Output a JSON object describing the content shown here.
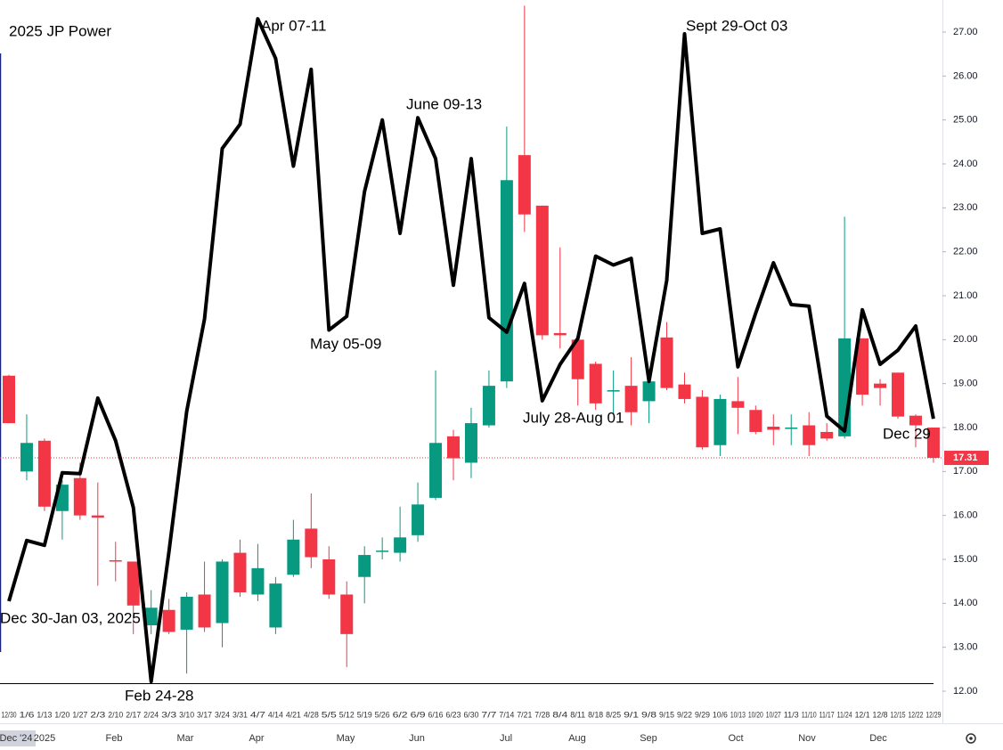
{
  "chart_data": {
    "type": "candlestick",
    "title": "2025 JP Power",
    "categories": [
      "12/30",
      "1/6",
      "1/13",
      "1/20",
      "1/27",
      "2/3",
      "2/10",
      "2/17",
      "2/24",
      "3/3",
      "3/10",
      "3/17",
      "3/24",
      "3/31",
      "4/7",
      "4/14",
      "4/21",
      "4/28",
      "5/5",
      "5/12",
      "5/19",
      "5/26",
      "6/2",
      "6/9",
      "6/16",
      "6/23",
      "6/30",
      "7/7",
      "7/14",
      "7/21",
      "7/28",
      "8/4",
      "8/11",
      "8/18",
      "8/25",
      "9/1",
      "9/8",
      "9/15",
      "9/22",
      "9/29",
      "10/6",
      "10/13",
      "10/20",
      "10/27",
      "11/3",
      "11/10",
      "11/17",
      "11/24",
      "12/1",
      "12/8",
      "12/15",
      "12/22",
      "12/29"
    ],
    "months": [
      "Dec '24",
      "2025",
      "Feb",
      "Mar",
      "Apr",
      "May",
      "Jun",
      "Jul",
      "Aug",
      "Sep",
      "Oct",
      "Nov",
      "Dec"
    ],
    "open": [
      19.18,
      17.0,
      17.7,
      16.1,
      16.85,
      16.0,
      14.98,
      14.95,
      13.5,
      13.85,
      13.4,
      14.2,
      13.55,
      15.15,
      14.2,
      13.45,
      14.65,
      15.7,
      15.0,
      14.2,
      14.6,
      15.2,
      15.15,
      15.55,
      16.4,
      17.8,
      17.2,
      18.05,
      19.05,
      24.2,
      23.05,
      20.15,
      20.0,
      19.45,
      18.85,
      18.95,
      18.6,
      20.05,
      18.98,
      18.7,
      17.6,
      18.6,
      18.4,
      18.02,
      18.0,
      18.05,
      17.9,
      17.8,
      20.03,
      19.0,
      19.25,
      18.27,
      18.0
    ],
    "high": [
      19.2,
      18.3,
      17.75,
      16.8,
      17.2,
      16.75,
      15.4,
      14.95,
      14.3,
      14.1,
      14.25,
      14.95,
      15.0,
      15.45,
      15.35,
      14.6,
      15.9,
      16.5,
      15.3,
      14.5,
      15.3,
      15.5,
      16.2,
      16.75,
      19.3,
      17.95,
      18.45,
      19.3,
      24.85,
      27.6,
      23.05,
      22.1,
      20.1,
      19.5,
      19.3,
      19.6,
      19.1,
      20.4,
      19.25,
      18.85,
      18.75,
      19.15,
      18.5,
      18.3,
      18.3,
      18.35,
      18.1,
      22.8,
      20.0,
      19.1,
      19.25,
      18.3,
      18.0
    ],
    "low": [
      18.1,
      16.8,
      16.1,
      15.45,
      15.9,
      14.4,
      14.5,
      13.3,
      13.3,
      13.3,
      12.4,
      13.35,
      13.0,
      14.15,
      14.05,
      13.3,
      14.6,
      14.8,
      14.1,
      12.55,
      14.0,
      15.0,
      14.95,
      15.4,
      16.35,
      16.8,
      16.85,
      18.0,
      18.9,
      22.45,
      20.0,
      19.8,
      18.5,
      18.4,
      18.3,
      18.05,
      18.1,
      18.85,
      18.55,
      17.5,
      17.35,
      17.85,
      17.85,
      17.6,
      17.6,
      17.35,
      17.7,
      17.75,
      18.5,
      18.5,
      18.2,
      17.55,
      17.2
    ],
    "close": [
      18.1,
      17.65,
      16.2,
      16.7,
      16.0,
      15.95,
      14.95,
      13.95,
      13.9,
      13.35,
      14.15,
      13.45,
      14.95,
      14.25,
      14.8,
      14.45,
      15.45,
      15.05,
      14.2,
      13.3,
      15.1,
      15.2,
      15.5,
      16.25,
      17.65,
      17.3,
      18.1,
      18.95,
      23.63,
      22.85,
      20.1,
      20.1,
      19.1,
      18.55,
      18.85,
      18.35,
      19.05,
      18.9,
      18.65,
      17.55,
      18.65,
      18.45,
      17.9,
      17.95,
      18.0,
      17.6,
      17.75,
      20.03,
      18.75,
      18.9,
      18.25,
      18.05,
      17.31
    ],
    "color_up": "#089981",
    "color_down": "#f23645",
    "overlay": {
      "type": "line",
      "color": "#000000",
      "values": [
        14.05,
        15.43,
        15.32,
        16.97,
        16.95,
        18.67,
        17.7,
        16.18,
        12.22,
        15.16,
        18.37,
        20.47,
        24.35,
        24.9,
        27.3,
        26.4,
        23.95,
        26.15,
        20.22,
        20.53,
        23.37,
        25.0,
        22.42,
        25.05,
        24.12,
        21.24,
        24.12,
        20.5,
        20.17,
        21.28,
        18.61,
        19.44,
        20.03,
        21.9,
        21.7,
        21.85,
        19.05,
        21.35,
        26.96,
        22.42,
        22.52,
        19.38,
        20.6,
        21.75,
        20.8,
        20.76,
        18.26,
        17.92,
        20.68,
        19.44,
        19.76,
        20.31,
        18.2
      ]
    },
    "last_price": {
      "value": 17.31,
      "label": "17.31"
    },
    "annotations": [
      "Dec 30-Jan 03, 2025",
      "Feb 24-28",
      "Apr 07-11",
      "May 05-09",
      "June 09-13",
      "July 28-Aug 01",
      "Sept 29-Oct 03",
      "Dec 29"
    ],
    "ylim": [
      11.27,
      27.73
    ],
    "yticks": [
      {
        "value": 12,
        "label": "12.00"
      },
      {
        "value": 13,
        "label": "13.00"
      },
      {
        "value": 14,
        "label": "14.00"
      },
      {
        "value": 15,
        "label": "15.00"
      },
      {
        "value": 16,
        "label": "16.00"
      },
      {
        "value": 17,
        "label": "17.00"
      },
      {
        "value": 18,
        "label": "18.00"
      },
      {
        "value": 19,
        "label": "19.00"
      },
      {
        "value": 20,
        "label": "20.00"
      },
      {
        "value": 21,
        "label": "21.00"
      },
      {
        "value": 22,
        "label": "22.00"
      },
      {
        "value": 23,
        "label": "23.00"
      },
      {
        "value": 24,
        "label": "24.00"
      },
      {
        "value": 25,
        "label": "25.00"
      },
      {
        "value": 26,
        "label": "26.00"
      },
      {
        "value": 27,
        "label": "27.00"
      }
    ],
    "grid": false
  }
}
